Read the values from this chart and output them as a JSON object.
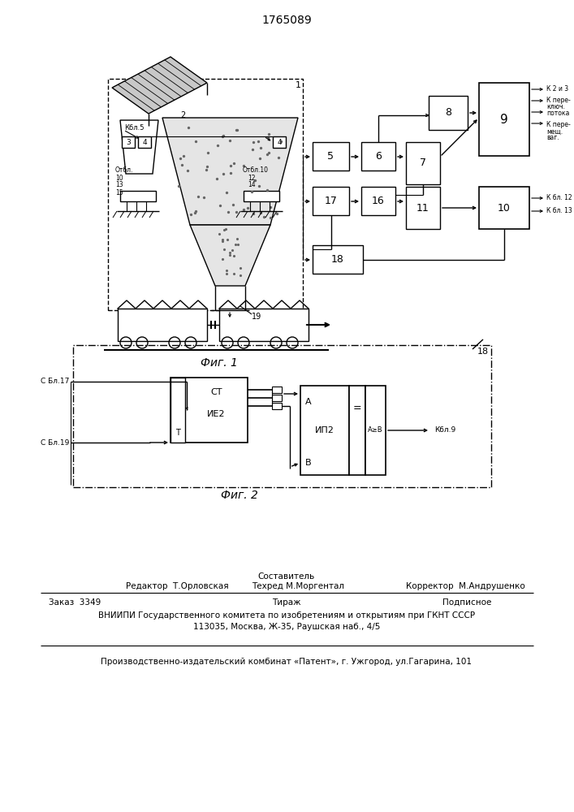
{
  "title": "1765089",
  "fig1_caption": "Фиг. 1",
  "fig2_caption": "Фиг. 2",
  "footer_col2_header": "Составитель",
  "footer_col1": "Редактор  Т.Орловская",
  "footer_col2": "Техред М.Моргентал",
  "footer_col3": "Корректор  М.Андрушенко",
  "footer_order": "Заказ  3349",
  "footer_tirazh": "Тираж",
  "footer_podp": "Подписное",
  "footer_vniip1": "ВНИИПИ Государственного комитета по изобретениям и открытиям при ГКНТ СССР",
  "footer_vniip2": "113035, Москва, Ж-35, Раушская наб., 4/5",
  "footer_patent": "Производственно-издательский комбинат «Патент», г. Ужгород, ул.Гагарина, 101"
}
